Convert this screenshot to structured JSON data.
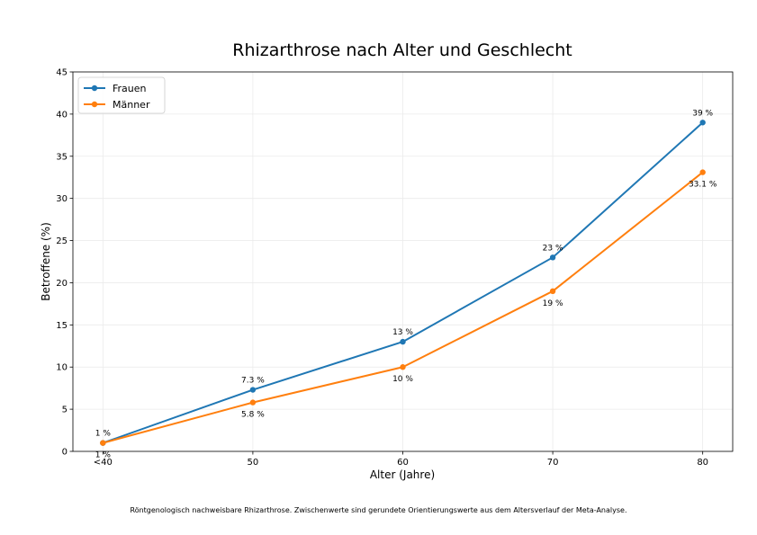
{
  "chart_data": {
    "type": "line",
    "title": "Rhizarthrose nach Alter und Geschlecht",
    "xlabel": "Alter (Jahre)",
    "ylabel": "Betroffene (%)",
    "x": [
      40,
      50,
      60,
      70,
      80
    ],
    "x_tick_labels": [
      "<40",
      "50",
      "60",
      "70",
      "80"
    ],
    "y_ticks": [
      0,
      5,
      10,
      15,
      20,
      25,
      30,
      35,
      40,
      45
    ],
    "xlim": [
      38,
      82
    ],
    "ylim": [
      0,
      45
    ],
    "grid": true,
    "legend_position": "upper left",
    "series": [
      {
        "name": "Frauen",
        "color": "#1f77b4",
        "values": [
          1,
          7.3,
          13,
          23,
          39
        ],
        "labels": [
          "1 %",
          "7.3 %",
          "13 %",
          "23 %",
          "39 %"
        ],
        "label_position": "above"
      },
      {
        "name": "Männer",
        "color": "#ff7f0e",
        "values": [
          1,
          5.8,
          10,
          19,
          33.1
        ],
        "labels": [
          "1 %",
          "5.8 %",
          "10 %",
          "19 %",
          "33.1 %"
        ],
        "label_position": "below"
      }
    ]
  },
  "caption": "Röntgenologisch nachweisbare Rhizarthrose. Zwischenwerte sind gerundete Orientierungswerte aus dem Altersverlauf der Meta-Analyse."
}
